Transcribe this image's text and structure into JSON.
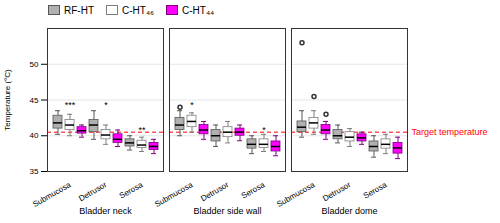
{
  "chart_data": {
    "type": "box",
    "ylabel": "Temperature (°C)",
    "ylim": [
      35,
      55
    ],
    "yticks": [
      35,
      40,
      45,
      50
    ],
    "grid": true,
    "legend": "upper left",
    "groups": [
      "Bladder neck",
      "Bladder side wall",
      "Bladder dome"
    ],
    "categories": [
      "Submucosa",
      "Detrusor",
      "Serosa"
    ],
    "reference_lines": [
      {
        "y": 40.5,
        "label": "Target temperature",
        "color": "red"
      }
    ],
    "series": [
      {
        "name": "RF-HT",
        "color": "#b0b0b0",
        "values": [
          [
            {
              "med": 41.8,
              "q1": 41.0,
              "q3": 42.8,
              "whislo": 40.2,
              "whishi": 43.5,
              "fliers": []
            },
            {
              "med": 41.5,
              "q1": 40.5,
              "q3": 42.2,
              "whislo": 39.5,
              "whishi": 43.5,
              "fliers": []
            },
            {
              "med": 39.0,
              "q1": 38.5,
              "q3": 39.5,
              "whislo": 38.0,
              "whishi": 40.0,
              "fliers": []
            }
          ],
          [
            {
              "med": 41.5,
              "q1": 40.8,
              "q3": 42.5,
              "whislo": 40.0,
              "whishi": 43.5,
              "fliers": [
                44.0
              ]
            },
            {
              "med": 40.0,
              "q1": 39.2,
              "q3": 40.8,
              "whislo": 38.5,
              "whishi": 41.5,
              "fliers": []
            },
            {
              "med": 38.8,
              "q1": 38.2,
              "q3": 39.5,
              "whislo": 37.5,
              "whishi": 40.0,
              "fliers": []
            }
          ],
          [
            {
              "med": 41.2,
              "q1": 40.5,
              "q3": 42.0,
              "whislo": 39.8,
              "whishi": 43.5,
              "fliers": [
                53.0
              ]
            },
            {
              "med": 40.0,
              "q1": 39.5,
              "q3": 40.8,
              "whislo": 39.0,
              "whishi": 41.5,
              "fliers": []
            },
            {
              "med": 38.5,
              "q1": 37.8,
              "q3": 39.2,
              "whislo": 37.0,
              "whishi": 40.0,
              "fliers": []
            }
          ]
        ]
      },
      {
        "name": "C-HT₄₆",
        "color": "#ffffff",
        "values": [
          [
            {
              "med": 41.5,
              "q1": 40.8,
              "q3": 42.2,
              "whislo": 40.0,
              "whishi": 43.0,
              "fliers": []
            },
            {
              "med": 40.1,
              "q1": 39.5,
              "q3": 40.8,
              "whislo": 38.8,
              "whishi": 41.5,
              "fliers": []
            },
            {
              "med": 38.7,
              "q1": 38.3,
              "q3": 39.3,
              "whislo": 37.8,
              "whishi": 39.8,
              "fliers": []
            }
          ],
          [
            {
              "med": 42.0,
              "q1": 41.2,
              "q3": 42.8,
              "whislo": 40.5,
              "whishi": 43.2,
              "fliers": []
            },
            {
              "med": 40.5,
              "q1": 39.8,
              "q3": 41.2,
              "whislo": 39.0,
              "whishi": 42.0,
              "fliers": []
            },
            {
              "med": 38.8,
              "q1": 38.3,
              "q3": 39.5,
              "whislo": 37.8,
              "whishi": 40.2,
              "fliers": []
            }
          ],
          [
            {
              "med": 41.8,
              "q1": 41.0,
              "q3": 42.5,
              "whislo": 40.2,
              "whishi": 43.5,
              "fliers": [
                45.5
              ]
            },
            {
              "med": 39.8,
              "q1": 39.2,
              "q3": 40.5,
              "whislo": 38.5,
              "whishi": 41.0,
              "fliers": []
            },
            {
              "med": 38.8,
              "q1": 38.2,
              "q3": 39.5,
              "whislo": 37.5,
              "whishi": 40.2,
              "fliers": []
            }
          ]
        ]
      },
      {
        "name": "C-HT₄₄",
        "color": "#ff00ff",
        "values": [
          [
            {
              "med": 40.7,
              "q1": 40.3,
              "q3": 41.2,
              "whislo": 39.8,
              "whishi": 41.5,
              "fliers": []
            },
            {
              "med": 39.5,
              "q1": 39.0,
              "q3": 40.2,
              "whislo": 38.5,
              "whishi": 40.8,
              "fliers": []
            },
            {
              "med": 38.5,
              "q1": 38.0,
              "q3": 39.0,
              "whislo": 37.5,
              "whishi": 39.5,
              "fliers": []
            }
          ],
          [
            {
              "med": 40.8,
              "q1": 40.2,
              "q3": 41.5,
              "whislo": 39.5,
              "whishi": 42.0,
              "fliers": []
            },
            {
              "med": 40.5,
              "q1": 40.0,
              "q3": 41.0,
              "whislo": 39.3,
              "whishi": 41.5,
              "fliers": []
            },
            {
              "med": 38.5,
              "q1": 37.8,
              "q3": 39.2,
              "whislo": 37.2,
              "whishi": 40.0,
              "fliers": []
            }
          ],
          [
            {
              "med": 40.8,
              "q1": 40.2,
              "q3": 41.5,
              "whislo": 39.5,
              "whishi": 42.0,
              "fliers": [
                43.0
              ]
            },
            {
              "med": 39.7,
              "q1": 39.2,
              "q3": 40.2,
              "whislo": 38.8,
              "whishi": 40.5,
              "fliers": []
            },
            {
              "med": 38.3,
              "q1": 37.5,
              "q3": 39.0,
              "whislo": 36.8,
              "whishi": 39.8,
              "fliers": []
            }
          ]
        ]
      }
    ],
    "annotations": [
      {
        "group": "Bladder neck",
        "category": "Submucosa",
        "text": "***"
      },
      {
        "group": "Bladder neck",
        "category": "Detrusor",
        "text": "*"
      },
      {
        "group": "Bladder neck",
        "category": "Serosa",
        "text": "**"
      },
      {
        "group": "Bladder side wall",
        "category": "Submucosa",
        "text": "*"
      },
      {
        "group": "Bladder side wall",
        "category": "Serosa",
        "text": "*"
      }
    ]
  }
}
